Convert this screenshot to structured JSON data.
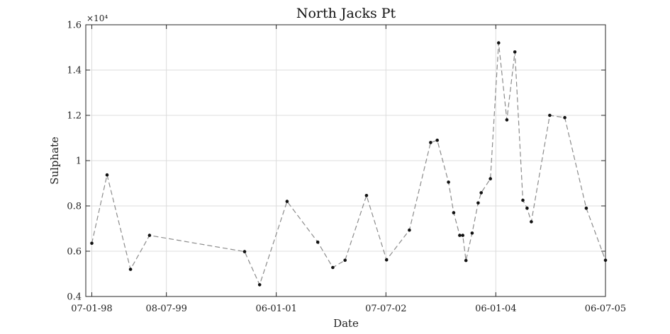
{
  "chart_data": {
    "type": "line",
    "title": "North Jacks Pt",
    "xlabel": "Date",
    "ylabel": "Sulphate",
    "y_exponent_label": "×10⁴",
    "xlim": [
      "1998-06-01",
      "2005-07-06"
    ],
    "ylim": [
      4000,
      16000
    ],
    "x_ticks": [
      "1998-07-01",
      "1999-07-08",
      "2001-01-06",
      "2002-07-07",
      "2004-01-06",
      "2005-07-06"
    ],
    "x_tick_labels": [
      "07-01-98",
      "08-07-99",
      "06-01-01",
      "07-07-02",
      "06-01-04",
      "06-07-05"
    ],
    "y_ticks": [
      4000,
      6000,
      8000,
      10000,
      12000,
      14000,
      16000
    ],
    "y_tick_labels": [
      "0.4",
      "0.6",
      "0.8",
      "1",
      "1.2",
      "1.4",
      "1.6"
    ],
    "grid": true,
    "line_style": "dashed",
    "colors": {
      "line": "#8c8c8c",
      "marker": "#111111",
      "grid": "#dcdcdc",
      "axes": "#262626"
    },
    "series": [
      {
        "x": [
          "1998-07-01",
          "1998-09-15",
          "1999-01-10",
          "1999-04-15",
          "2000-08-01",
          "2000-10-15",
          "2001-03-01",
          "2001-08-01",
          "2001-10-15",
          "2001-12-15",
          "2002-04-01",
          "2002-07-10",
          "2002-11-01",
          "2003-02-15",
          "2003-03-20",
          "2003-05-15",
          "2003-06-10",
          "2003-07-10",
          "2003-07-25",
          "2003-08-10",
          "2003-09-10",
          "2003-10-10",
          "2003-10-25",
          "2003-12-10",
          "2004-01-20",
          "2004-03-01",
          "2004-04-10",
          "2004-05-20",
          "2004-06-10",
          "2004-07-01",
          "2004-10-01",
          "2004-12-15",
          "2005-04-01",
          "2005-07-06"
        ],
        "y": [
          6350,
          9370,
          5200,
          6700,
          5980,
          4520,
          8200,
          6400,
          5280,
          5600,
          8460,
          5620,
          6930,
          10800,
          10900,
          9050,
          7700,
          6700,
          6700,
          5590,
          6800,
          8130,
          8580,
          9200,
          15200,
          11800,
          14800,
          8250,
          7900,
          7300,
          12000,
          11900,
          7900,
          5600
        ]
      }
    ]
  }
}
